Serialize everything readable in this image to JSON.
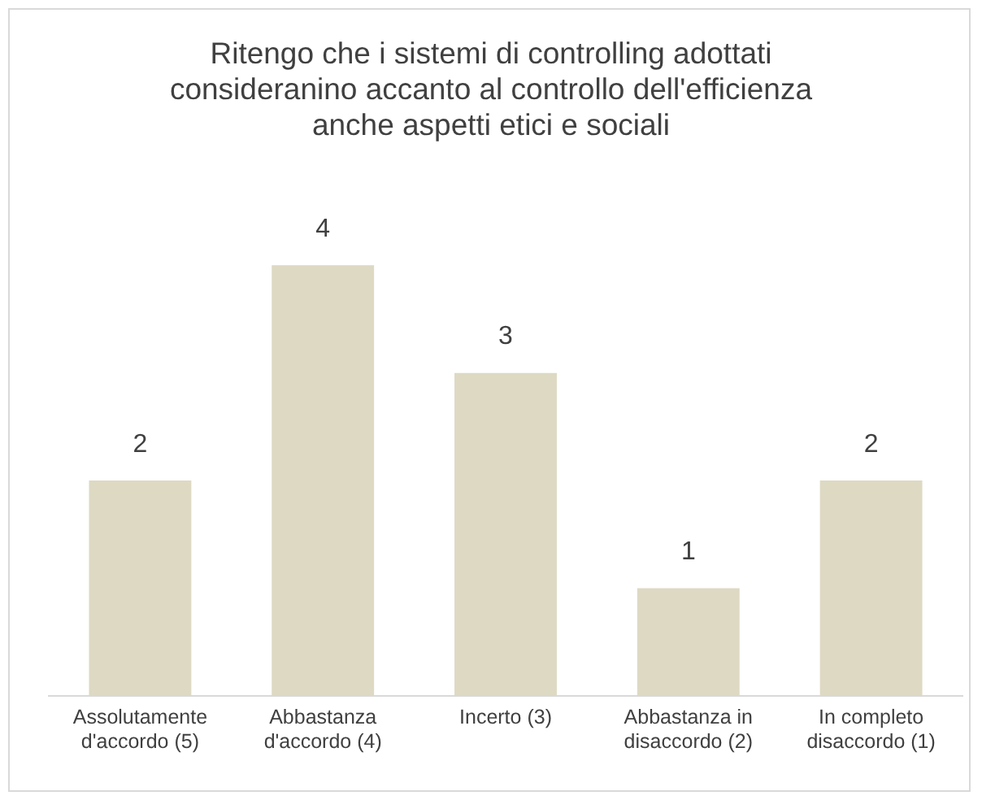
{
  "chart_data": {
    "type": "bar",
    "title": "Ritengo che i sistemi di controlling adottati consideranino accanto al controllo dell'efficienza anche aspetti etici e sociali",
    "categories": [
      "Assolutamente d'accordo (5)",
      "Abbastanza d'accordo (4)",
      "Incerto (3)",
      "Abbastanza in disaccordo (2)",
      "In completo disaccordo (1)"
    ],
    "values": [
      2,
      4,
      3,
      1,
      2
    ],
    "color": "#ddd9c3",
    "data_labels": true,
    "grid": false,
    "legend": false,
    "tick_labels": "x"
  }
}
